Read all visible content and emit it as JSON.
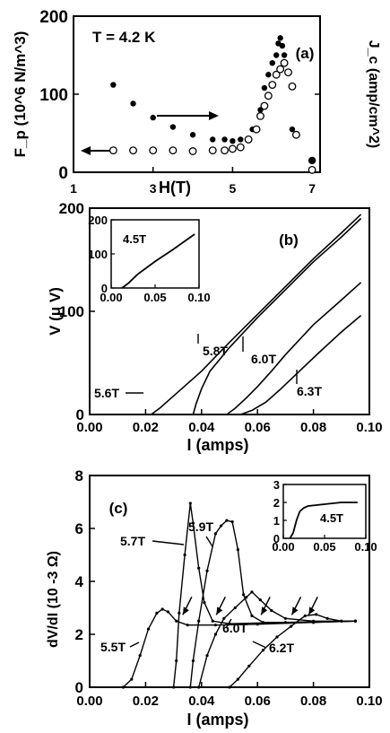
{
  "chart_data": [
    {
      "id": "a",
      "type": "scatter",
      "panel_label": "(a)",
      "annotation": "T = 4.2 K",
      "xlabel": "H(T)",
      "ylabel_left": "F_p (10^6 N/m^3)",
      "ylabel_right": "J_c (amp/cm^2)",
      "xlim": [
        1,
        7.2
      ],
      "ylim": [
        0,
        200
      ],
      "xticks": [
        1,
        3,
        5,
        7
      ],
      "yticks": [
        0,
        100,
        200
      ],
      "arrows": [
        "Jc → right axis",
        "Fp ← left axis"
      ],
      "series": [
        {
          "marker": "filled",
          "points": [
            [
              2.0,
              112
            ],
            [
              2.5,
              88
            ],
            [
              3.0,
              70
            ],
            [
              3.5,
              58
            ],
            [
              4.0,
              48
            ],
            [
              4.5,
              42
            ],
            [
              4.8,
              42
            ],
            [
              5.0,
              40
            ],
            [
              5.2,
              42
            ],
            [
              5.5,
              55
            ],
            [
              5.7,
              80
            ],
            [
              5.8,
              108
            ],
            [
              5.9,
              125
            ],
            [
              6.0,
              140
            ],
            [
              6.1,
              150
            ],
            [
              6.15,
              165
            ],
            [
              6.2,
              172
            ],
            [
              6.25,
              162
            ],
            [
              6.3,
              150
            ],
            [
              6.5,
              55
            ],
            [
              7.0,
              15
            ]
          ]
        },
        {
          "marker": "open",
          "points": [
            [
              2.0,
              28
            ],
            [
              2.5,
              28
            ],
            [
              3.0,
              28
            ],
            [
              3.5,
              28
            ],
            [
              4.0,
              27
            ],
            [
              4.5,
              28
            ],
            [
              4.8,
              28
            ],
            [
              5.0,
              30
            ],
            [
              5.2,
              32
            ],
            [
              5.4,
              42
            ],
            [
              5.6,
              55
            ],
            [
              5.7,
              72
            ],
            [
              5.8,
              85
            ],
            [
              5.9,
              98
            ],
            [
              6.0,
              112
            ],
            [
              6.1,
              125
            ],
            [
              6.2,
              132
            ],
            [
              6.3,
              140
            ],
            [
              6.4,
              128
            ],
            [
              6.5,
              110
            ],
            [
              6.6,
              48
            ],
            [
              7.0,
              3
            ]
          ]
        }
      ]
    },
    {
      "id": "b",
      "type": "line",
      "panel_label": "(b)",
      "xlabel": "I (amps)",
      "ylabel": "V (μ V)",
      "xlim": [
        0,
        0.1
      ],
      "ylim": [
        0,
        200
      ],
      "xticks": [
        "0.00",
        "0.02",
        "0.04",
        "0.06",
        "0.08",
        "0.10"
      ],
      "yticks": [
        "0",
        "100",
        "200"
      ],
      "series": [
        {
          "name": "5.6T",
          "points": [
            [
              0.022,
              0
            ],
            [
              0.025,
              6
            ],
            [
              0.03,
              18
            ],
            [
              0.04,
              42
            ],
            [
              0.05,
              70
            ],
            [
              0.06,
              97
            ],
            [
              0.07,
              124
            ],
            [
              0.08,
              151
            ],
            [
              0.09,
              176
            ],
            [
              0.097,
              194
            ]
          ]
        },
        {
          "name": "5.8T",
          "points": [
            [
              0.037,
              0
            ],
            [
              0.038,
              10
            ],
            [
              0.04,
              25
            ],
            [
              0.043,
              42
            ],
            [
              0.05,
              65
            ],
            [
              0.06,
              94
            ],
            [
              0.07,
              121
            ],
            [
              0.08,
              148
            ],
            [
              0.09,
              172
            ],
            [
              0.097,
              190
            ]
          ]
        },
        {
          "name": "6.0T",
          "points": [
            [
              0.049,
              0
            ],
            [
              0.052,
              6
            ],
            [
              0.056,
              16
            ],
            [
              0.06,
              27
            ],
            [
              0.065,
              42
            ],
            [
              0.07,
              58
            ],
            [
              0.08,
              87
            ],
            [
              0.09,
              111
            ],
            [
              0.097,
              128
            ]
          ]
        },
        {
          "name": "6.3T",
          "points": [
            [
              0.054,
              0
            ],
            [
              0.058,
              4
            ],
            [
              0.063,
              12
            ],
            [
              0.068,
              24
            ],
            [
              0.075,
              42
            ],
            [
              0.082,
              60
            ],
            [
              0.09,
              80
            ],
            [
              0.097,
              96
            ]
          ]
        }
      ],
      "inset": {
        "label": "4.5T",
        "xlim": [
          0,
          0.1
        ],
        "ylim": [
          0,
          200
        ],
        "xticks": [
          "0.00",
          "0.05",
          "0.10"
        ],
        "yticks": [
          "0",
          "100",
          "200"
        ],
        "points": [
          [
            0.012,
            0
          ],
          [
            0.015,
            5
          ],
          [
            0.02,
            15
          ],
          [
            0.03,
            40
          ],
          [
            0.05,
            78
          ],
          [
            0.07,
            112
          ],
          [
            0.095,
            158
          ]
        ]
      }
    },
    {
      "id": "c",
      "type": "line",
      "panel_label": "(c)",
      "xlabel": "I (amps)",
      "ylabel": "dV/dI (10 -3 Ω)",
      "xlim": [
        0,
        0.1
      ],
      "ylim": [
        0,
        8
      ],
      "xticks": [
        "0.00",
        "0.02",
        "0.04",
        "0.06",
        "0.08",
        "0.10"
      ],
      "yticks": [
        "0",
        "2",
        "4",
        "6",
        "8"
      ],
      "series": [
        {
          "name": "5.5T",
          "points": [
            [
              0.012,
              0
            ],
            [
              0.015,
              0.3
            ],
            [
              0.018,
              1.2
            ],
            [
              0.021,
              2.2
            ],
            [
              0.024,
              2.8
            ],
            [
              0.026,
              2.95
            ],
            [
              0.028,
              2.85
            ],
            [
              0.031,
              2.5
            ],
            [
              0.035,
              2.35
            ],
            [
              0.045,
              2.35
            ],
            [
              0.06,
              2.38
            ],
            [
              0.08,
              2.45
            ],
            [
              0.095,
              2.5
            ]
          ]
        },
        {
          "name": "5.7T",
          "points": [
            [
              0.03,
              0
            ],
            [
              0.031,
              1.0
            ],
            [
              0.032,
              2.8
            ],
            [
              0.034,
              5.0
            ],
            [
              0.036,
              6.95
            ],
            [
              0.037,
              6.2
            ],
            [
              0.039,
              4.5
            ],
            [
              0.041,
              3.2
            ],
            [
              0.044,
              2.5
            ],
            [
              0.05,
              2.4
            ],
            [
              0.07,
              2.45
            ],
            [
              0.09,
              2.5
            ]
          ]
        },
        {
          "name": "5.9T",
          "points": [
            [
              0.036,
              0
            ],
            [
              0.037,
              1.0
            ],
            [
              0.039,
              2.5
            ],
            [
              0.042,
              4.4
            ],
            [
              0.045,
              5.8
            ],
            [
              0.047,
              6.1
            ],
            [
              0.049,
              6.3
            ],
            [
              0.051,
              6.25
            ],
            [
              0.053,
              5.2
            ],
            [
              0.055,
              3.5
            ],
            [
              0.058,
              2.7
            ],
            [
              0.062,
              2.45
            ],
            [
              0.08,
              2.45
            ],
            [
              0.095,
              2.5
            ]
          ]
        },
        {
          "name": "6.0T",
          "points": [
            [
              0.039,
              0
            ],
            [
              0.042,
              1.2
            ],
            [
              0.045,
              2.0
            ],
            [
              0.048,
              2.6
            ],
            [
              0.052,
              3.0
            ],
            [
              0.056,
              3.4
            ],
            [
              0.058,
              3.6
            ],
            [
              0.061,
              3.3
            ],
            [
              0.065,
              2.9
            ],
            [
              0.07,
              2.6
            ],
            [
              0.08,
              2.5
            ],
            [
              0.095,
              2.5
            ]
          ]
        },
        {
          "name": "6.2T",
          "points": [
            [
              0.05,
              0
            ],
            [
              0.053,
              0.3
            ],
            [
              0.057,
              0.8
            ],
            [
              0.062,
              1.4
            ],
            [
              0.067,
              1.9
            ],
            [
              0.072,
              2.3
            ],
            [
              0.077,
              2.7
            ],
            [
              0.081,
              2.75
            ],
            [
              0.085,
              2.6
            ],
            [
              0.09,
              2.5
            ],
            [
              0.095,
              2.5
            ]
          ]
        }
      ],
      "arrows": [
        [
          0.032,
          2.6
        ],
        [
          0.044,
          2.6
        ],
        [
          0.06,
          2.6
        ],
        [
          0.071,
          2.6
        ],
        [
          0.077,
          2.6
        ]
      ],
      "inset": {
        "label": "4.5T",
        "xlim": [
          0,
          0.1
        ],
        "ylim": [
          0,
          3
        ],
        "xticks": [
          "0.00",
          "0.05",
          "0.10"
        ],
        "yticks": [
          "0",
          "1",
          "2",
          "3"
        ],
        "points": [
          [
            0.008,
            0
          ],
          [
            0.012,
            0.3
          ],
          [
            0.016,
            1.0
          ],
          [
            0.02,
            1.5
          ],
          [
            0.025,
            1.7
          ],
          [
            0.03,
            1.8
          ],
          [
            0.05,
            1.9
          ],
          [
            0.07,
            2.0
          ],
          [
            0.09,
            2.0
          ]
        ]
      }
    }
  ]
}
